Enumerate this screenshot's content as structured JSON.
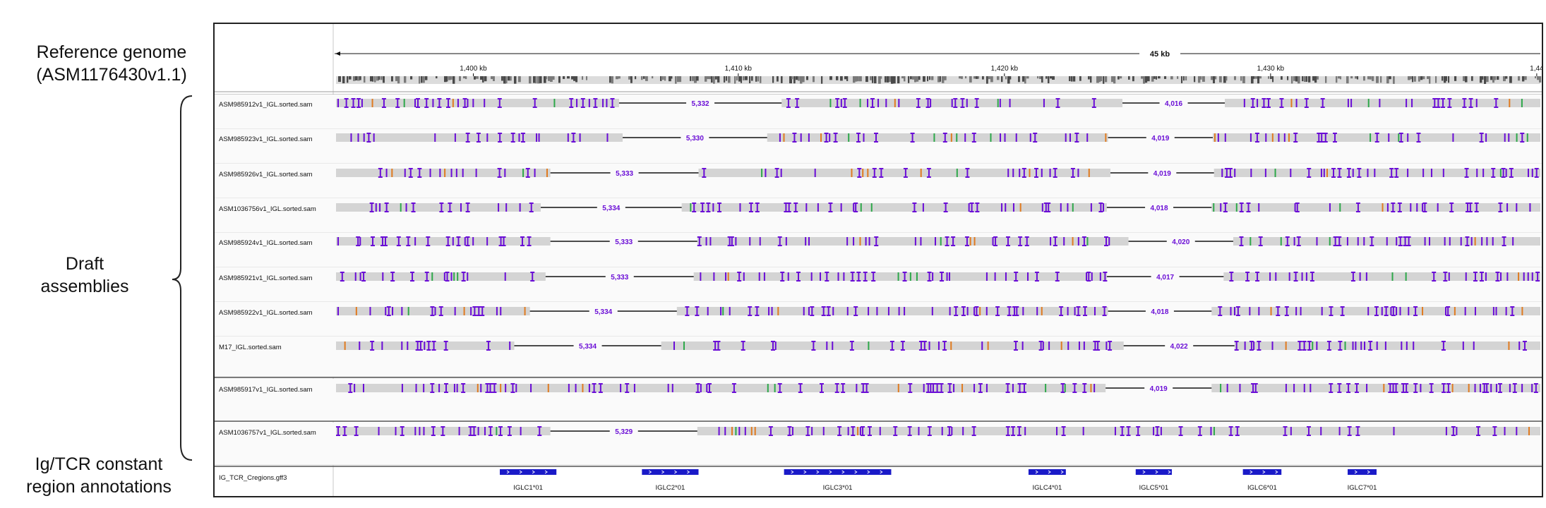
{
  "labels": {
    "reference": [
      "Reference genome",
      "(ASM1176430v1.1)"
    ],
    "draft": [
      "Draft",
      "assemblies"
    ],
    "annotations": [
      "Ig/TCR constant",
      "region annotations"
    ]
  },
  "colors": {
    "blue_group": "#1565c0",
    "green_group": "#2fb34a",
    "red_group": "#e02020",
    "read_gray": "#d4d4d4",
    "mismatch_purple": "#6a0dd6",
    "gap_label_purple": "#6a0dd6",
    "gene_blue": "#1a1ac8"
  },
  "ruler": {
    "span_label": "45 kb",
    "ticks": [
      "1,400 kb",
      "1,410 kb",
      "1,420 kb",
      "1,430 kb",
      "1,44"
    ]
  },
  "tracks": [
    {
      "name": "ASM985912v1_IGL.sorted.sam",
      "group": "blue",
      "gaps": [
        {
          "label": "5,332",
          "start": 0.235,
          "end": 0.37
        },
        {
          "label": "4,016",
          "start": 0.653,
          "end": 0.738
        }
      ]
    },
    {
      "name": "ASM985923v1_IGL.sorted.sam",
      "group": "blue",
      "gaps": [
        {
          "label": "5,330",
          "start": 0.238,
          "end": 0.358
        },
        {
          "label": "4,019",
          "start": 0.641,
          "end": 0.728
        }
      ]
    },
    {
      "name": "ASM985926v1_IGL.sorted.sam",
      "group": "blue",
      "gaps": [
        {
          "label": "5,333",
          "start": 0.178,
          "end": 0.301
        },
        {
          "label": "4,019",
          "start": 0.643,
          "end": 0.729
        }
      ]
    },
    {
      "name": "ASM1036756v1_IGL.sorted.sam",
      "group": "blue",
      "gaps": [
        {
          "label": "5,334",
          "start": 0.17,
          "end": 0.287
        },
        {
          "label": "4,018",
          "start": 0.64,
          "end": 0.727
        }
      ]
    },
    {
      "name": "ASM985924v1_IGL.sorted.sam",
      "group": "blue",
      "gaps": [
        {
          "label": "5,333",
          "start": 0.178,
          "end": 0.3
        },
        {
          "label": "4,020",
          "start": 0.658,
          "end": 0.745
        }
      ]
    },
    {
      "name": "ASM985921v1_IGL.sorted.sam",
      "group": "blue",
      "gaps": [
        {
          "label": "5,333",
          "start": 0.174,
          "end": 0.297
        },
        {
          "label": "4,017",
          "start": 0.64,
          "end": 0.737
        }
      ]
    },
    {
      "name": "ASM985922v1_IGL.sorted.sam",
      "group": "blue",
      "gaps": [
        {
          "label": "5,334",
          "start": 0.161,
          "end": 0.283
        },
        {
          "label": "4,018",
          "start": 0.641,
          "end": 0.727
        }
      ]
    },
    {
      "name": "M17_IGL.sorted.sam",
      "group": "blue",
      "gaps": [
        {
          "label": "5,334",
          "start": 0.148,
          "end": 0.27
        },
        {
          "label": "4,022",
          "start": 0.654,
          "end": 0.746
        }
      ]
    },
    {
      "name": "ASM985917v1_IGL.sorted.sam",
      "group": "green",
      "gaps": [
        {
          "label": "4,019",
          "start": 0.639,
          "end": 0.727
        }
      ]
    },
    {
      "name": "ASM1036757v1_IGL.sorted.sam",
      "group": "red",
      "gaps": [
        {
          "label": "5,329",
          "start": 0.178,
          "end": 0.3
        }
      ]
    }
  ],
  "annotation_track": {
    "name": "IG_TCR_Cregions.gff3",
    "genes": [
      {
        "label": "IGLC1*01",
        "start": 0.136,
        "end": 0.183
      },
      {
        "label": "IGLC2*01",
        "start": 0.254,
        "end": 0.301
      },
      {
        "label": "IGLC3*01",
        "start": 0.372,
        "end": 0.461
      },
      {
        "label": "IGLC4*01",
        "start": 0.575,
        "end": 0.606
      },
      {
        "label": "IGLC5*01",
        "start": 0.664,
        "end": 0.694
      },
      {
        "label": "IGLC6*01",
        "start": 0.753,
        "end": 0.785
      },
      {
        "label": "IGLC7*01",
        "start": 0.84,
        "end": 0.864
      }
    ]
  }
}
